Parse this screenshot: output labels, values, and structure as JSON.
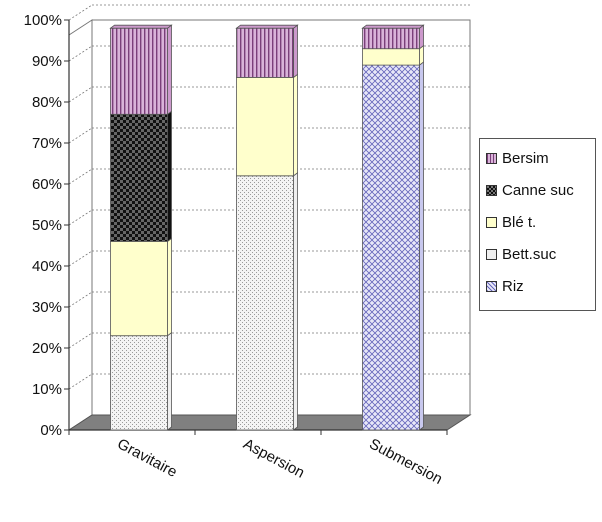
{
  "chart_data": {
    "type": "bar",
    "stacked": true,
    "percent": true,
    "three_d": true,
    "categories": [
      "Gravitaire",
      "Aspersion",
      "Submersion"
    ],
    "series": [
      {
        "name": "Riz",
        "values": [
          0,
          0,
          89
        ],
        "color": "#c8c8ee",
        "pattern": "crosshatch"
      },
      {
        "name": "Bett.suc",
        "values": [
          23,
          62,
          0
        ],
        "color": "#efefef",
        "pattern": "dotted"
      },
      {
        "name": "Blé t.",
        "values": [
          23,
          24,
          4
        ],
        "color": "#ffffcc",
        "pattern": "solid"
      },
      {
        "name": "Canne suc",
        "values": [
          31,
          0,
          0
        ],
        "color": "#111111",
        "pattern": "checker"
      },
      {
        "name": "Bersim",
        "values": [
          21,
          12,
          5
        ],
        "color": "#cc99cc",
        "pattern": "vertical-lines"
      }
    ],
    "legend_order": [
      "Bersim",
      "Canne suc",
      "Blé t.",
      "Bett.suc",
      "Riz"
    ],
    "y_ticks": [
      "0%",
      "10%",
      "20%",
      "30%",
      "40%",
      "50%",
      "60%",
      "70%",
      "80%",
      "90%",
      "100%"
    ],
    "ylim": [
      0,
      100
    ],
    "grid": true,
    "legend_position": "right",
    "title": "",
    "xlabel": "",
    "ylabel": ""
  }
}
